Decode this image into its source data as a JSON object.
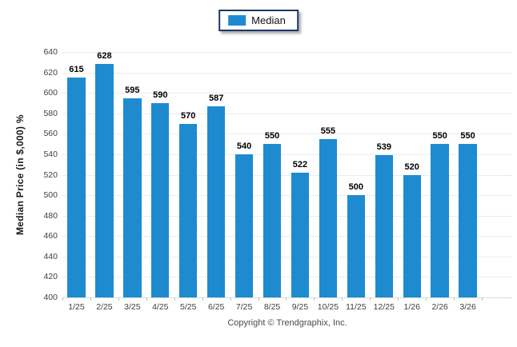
{
  "legend": {
    "label": "Median",
    "swatch_color": "#1e8bd1"
  },
  "footer": {
    "copyright": "Copyright © Trendgraphix, Inc."
  },
  "colors": {
    "bar": "#1e8bd1",
    "gridline": "#ececec",
    "baseline": "#dcdcdc",
    "tick_mark": "#b3c4d4",
    "axis_text": "#3f3f3f",
    "value_text": "#000000",
    "legend_border": "#1f3864"
  },
  "chart_data": {
    "type": "bar",
    "title": "",
    "xlabel": "",
    "ylabel": "Median Price (in $,000) %",
    "categories": [
      "1/25",
      "2/25",
      "3/25",
      "4/25",
      "5/25",
      "6/25",
      "7/25",
      "8/25",
      "9/25",
      "10/25",
      "11/25",
      "12/25",
      "1/26",
      "2/26",
      "3/26"
    ],
    "series": [
      {
        "name": "Median",
        "values": [
          615,
          628,
          595,
          590,
          570,
          587,
          540,
          550,
          522,
          555,
          500,
          539,
          520,
          550,
          550
        ]
      }
    ],
    "ylim": [
      400,
      640
    ],
    "ytick_step": 20,
    "yticks": [
      400,
      420,
      440,
      460,
      480,
      500,
      520,
      540,
      560,
      580,
      600,
      620,
      640
    ],
    "grid": "horizontal",
    "legend_position": "top-center",
    "bar_color": "#1e8bd1",
    "value_labels_shown": true
  }
}
